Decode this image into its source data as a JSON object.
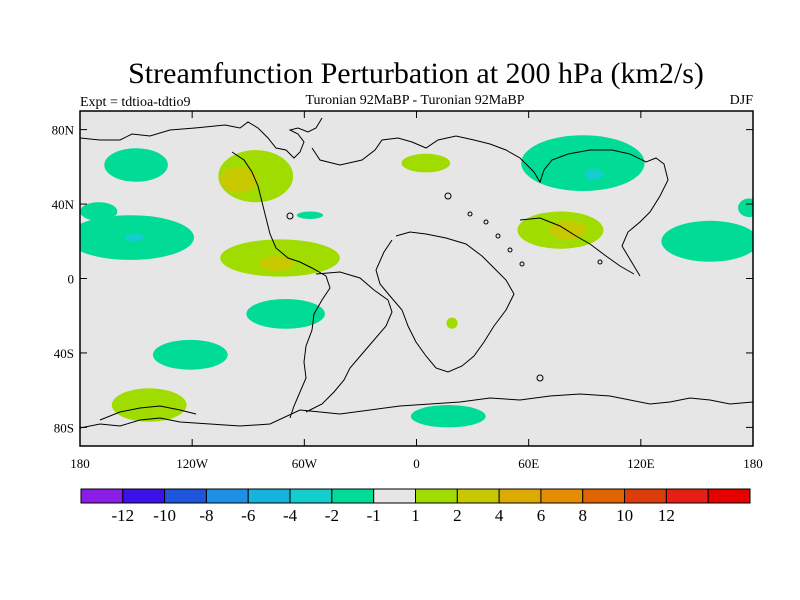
{
  "chart_data": {
    "type": "heatmap",
    "title": "Streamfunction Perturbation at 200 hPa (km2/s)",
    "left_string": "Expt = tdtioa-tdtio9",
    "center_string": "Turonian  92MaBP - Turonian  92MaBP",
    "right_string": "DJF",
    "x_axis": {
      "range": [
        -180,
        180
      ],
      "ticks": [
        -180,
        -120,
        -60,
        0,
        60,
        120,
        180
      ],
      "tick_labels": [
        "180",
        "120W",
        "60W",
        "0",
        "60E",
        "120E",
        "180"
      ]
    },
    "y_axis": {
      "range": [
        -90,
        90
      ],
      "ticks": [
        80,
        40,
        0,
        -40,
        -80
      ],
      "tick_labels": [
        "80N",
        "40N",
        "0",
        "40S",
        "80S"
      ]
    },
    "colorbar": {
      "colors": [
        "#8a1ee8",
        "#3c12e6",
        "#1e55dc",
        "#1e91e6",
        "#14b4dc",
        "#14cdcd",
        "#00dc96",
        "#e6e6e6",
        "#a0dc00",
        "#c8c800",
        "#dcaa00",
        "#e68c00",
        "#e06400",
        "#dc3c0a",
        "#e61e14",
        "#e60000"
      ],
      "labels": [
        "-12",
        "-10",
        "-8",
        "-6",
        "-4",
        "-2",
        "-1",
        "1",
        "2",
        "4",
        "6",
        "8",
        "10",
        "12"
      ]
    },
    "regions": [
      {
        "level": "-1",
        "lon": -150,
        "lat": 61,
        "rlon": 17,
        "rlat": 9
      },
      {
        "level": "-1",
        "lon": -170,
        "lat": 36,
        "rlon": 10,
        "rlat": 5
      },
      {
        "level": "-1",
        "lon": -153,
        "lat": 22,
        "rlon": 34,
        "rlat": 12
      },
      {
        "level": "-2",
        "lon": -151,
        "lat": 22,
        "rlon": 5,
        "rlat": 2
      },
      {
        "level": "-1",
        "lon": -57,
        "lat": 34,
        "rlon": 7,
        "rlat": 2
      },
      {
        "level": "-1",
        "lon": -70,
        "lat": -19,
        "rlon": 21,
        "rlat": 8
      },
      {
        "level": "-1",
        "lon": -121,
        "lat": -41,
        "rlon": 20,
        "rlat": 8
      },
      {
        "level": "-1",
        "lon": 17,
        "lat": -74,
        "rlon": 20,
        "rlat": 6
      },
      {
        "level": "-1",
        "lon": 89,
        "lat": 62,
        "rlon": 33,
        "rlat": 15
      },
      {
        "level": "-2",
        "lon": 95,
        "lat": 56,
        "rlon": 5,
        "rlat": 3
      },
      {
        "level": "-1",
        "lon": 157,
        "lat": 20,
        "rlon": 26,
        "rlat": 11
      },
      {
        "level": "-1",
        "lon": 178,
        "lat": 38,
        "rlon": 6,
        "rlat": 5
      },
      {
        "level": "1",
        "lon": -86,
        "lat": 55,
        "rlon": 20,
        "rlat": 14
      },
      {
        "level": "2",
        "lon": -95,
        "lat": 53,
        "rlon": 10,
        "rlat": 7
      },
      {
        "level": "1",
        "lon": -73,
        "lat": 11,
        "rlon": 32,
        "rlat": 10
      },
      {
        "level": "2",
        "lon": -75,
        "lat": 8,
        "rlon": 9,
        "rlat": 4
      },
      {
        "level": "1",
        "lon": 5,
        "lat": 62,
        "rlon": 13,
        "rlat": 5
      },
      {
        "level": "1",
        "lon": 77,
        "lat": 26,
        "rlon": 23,
        "rlat": 10
      },
      {
        "level": "2",
        "lon": 81,
        "lat": 26,
        "rlon": 10,
        "rlat": 5
      },
      {
        "level": "1",
        "lon": 19,
        "lat": -24,
        "rlon": 3,
        "rlat": 3
      },
      {
        "level": "1",
        "lon": -143,
        "lat": -68,
        "rlon": 20,
        "rlat": 9
      }
    ]
  }
}
